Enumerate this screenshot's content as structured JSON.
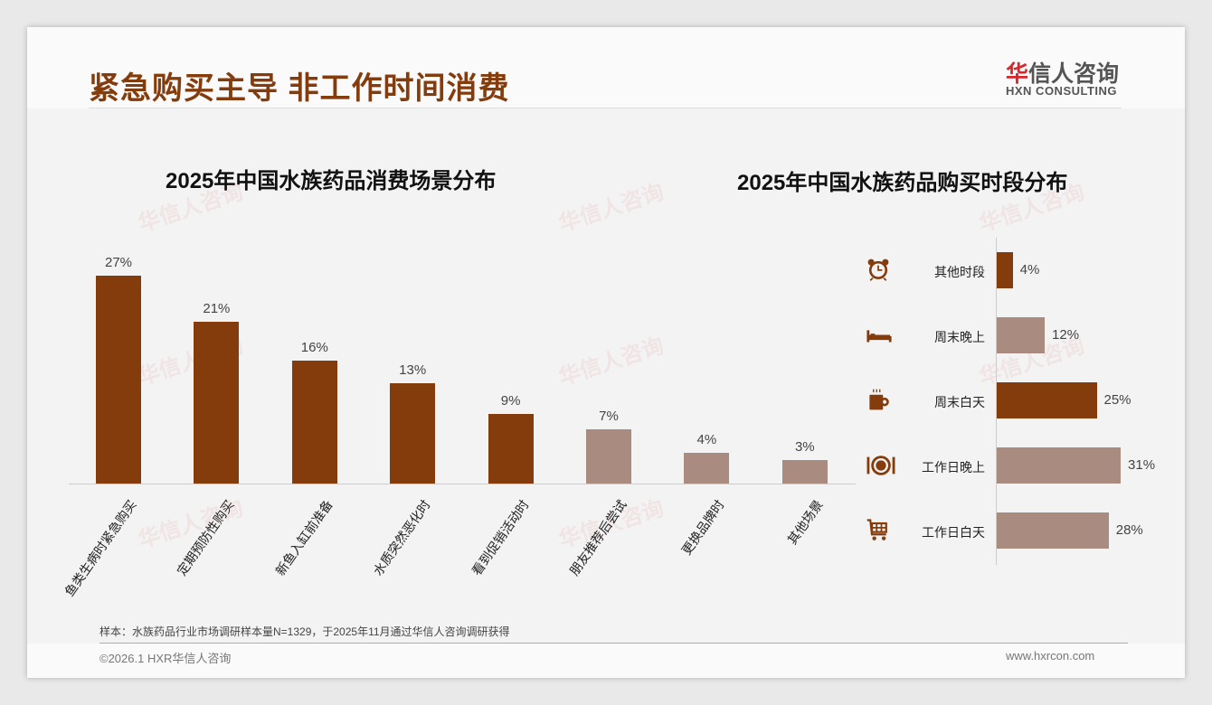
{
  "header": {
    "title": "紧急购买主导 非工作时间消费",
    "logo_cn_red": "华",
    "logo_cn": "信人咨询",
    "logo_en": "HXN CONSULTING"
  },
  "chart_data": [
    {
      "type": "bar",
      "title": "2025年中国水族药品消费场景分布",
      "categories": [
        "鱼类生病时紧急购买",
        "定期预防性购买",
        "新鱼入缸前准备",
        "水质突然恶化时",
        "看到促销活动时",
        "朋友推荐后尝试",
        "更换品牌时",
        "其他场景"
      ],
      "values": [
        27,
        21,
        16,
        13,
        9,
        7,
        4,
        3
      ],
      "labels": [
        "27%",
        "21%",
        "16%",
        "13%",
        "9%",
        "7%",
        "4%",
        "3%"
      ],
      "highlight": [
        true,
        true,
        true,
        true,
        true,
        false,
        false,
        false
      ],
      "unit": "%"
    },
    {
      "type": "bar",
      "orientation": "horizontal",
      "title": "2025年中国水族药品购买时段分布",
      "categories": [
        "其他时段",
        "周末晚上",
        "周末白天",
        "工作日晚上",
        "工作日白天"
      ],
      "values": [
        4,
        12,
        25,
        31,
        28
      ],
      "labels": [
        "4%",
        "12%",
        "25%",
        "31%",
        "28%"
      ],
      "highlight": [
        true,
        false,
        true,
        false,
        false
      ],
      "icons": [
        "alarm-clock-icon",
        "bed-icon",
        "coffee-cup-icon",
        "plate-cutlery-icon",
        "shopping-cart-icon"
      ],
      "unit": "%"
    }
  ],
  "colors": {
    "dark": "#843c0c",
    "light": "#a98b80"
  },
  "footer": {
    "note": "样本：水族药品行业市场调研样本量N=1329，于2025年11月通过华信人咨询调研获得",
    "copyright": "©2026.1 HXR华信人咨询",
    "url": "www.hxrcon.com"
  }
}
